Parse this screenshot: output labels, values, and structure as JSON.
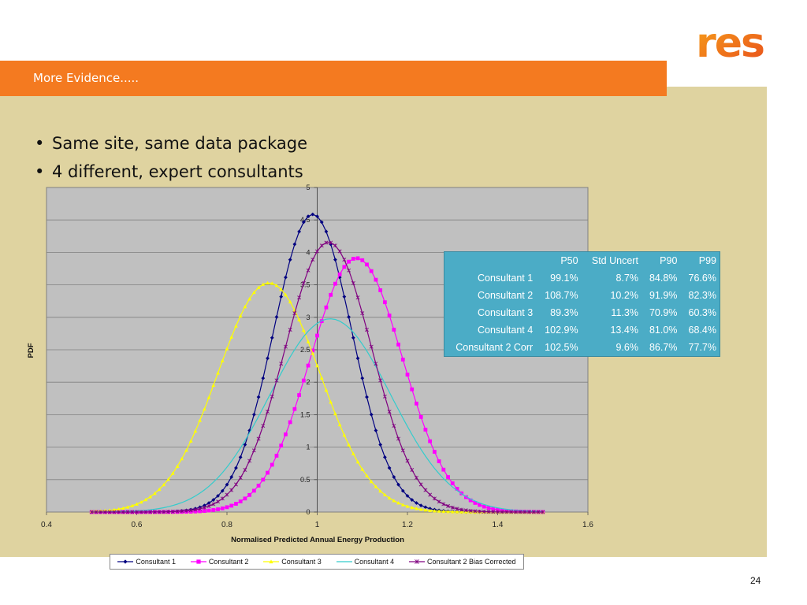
{
  "slide": {
    "title": "More Evidence.....",
    "logo_text": "res",
    "bullets": [
      "Same site, same data package",
      "4 different, expert consultants"
    ],
    "bullet_symbol": "•",
    "page_number": "24",
    "colors": {
      "title_bar": "#f47a20",
      "background": "#dfd3a0",
      "plot_area": "#c0c0c0",
      "table": "#4bacc6"
    }
  },
  "table": {
    "headers": [
      "",
      "P50",
      "Std Uncert",
      "P90",
      "P99"
    ],
    "rows": [
      [
        "Consultant 1",
        "99.1%",
        "8.7%",
        "84.8%",
        "76.6%"
      ],
      [
        "Consultant 2",
        "108.7%",
        "10.2%",
        "91.9%",
        "82.3%"
      ],
      [
        "Consultant 3",
        "89.3%",
        "11.3%",
        "70.9%",
        "60.3%"
      ],
      [
        "Consultant 4",
        "102.9%",
        "13.4%",
        "81.0%",
        "68.4%"
      ],
      [
        "Consultant 2 Corr",
        "102.5%",
        "9.6%",
        "86.7%",
        "77.7%"
      ]
    ]
  },
  "chart_data": {
    "type": "line",
    "xlabel": "Normalised Predicted Annual Energy Production",
    "ylabel": "PDF",
    "xlim": [
      0.4,
      1.6
    ],
    "ylim": [
      0,
      5
    ],
    "x_ticks": [
      "0.4",
      "0.6",
      "0.8",
      "1",
      "1.2",
      "1.4",
      "1.6"
    ],
    "y_ticks": [
      "0",
      "0.5",
      "1",
      "1.5",
      "2",
      "2.5",
      "3",
      "3.5",
      "4",
      "4.5",
      "5"
    ],
    "grid": "horizontal",
    "legend_position": "bottom",
    "x_range": [
      0.5,
      1.5
    ],
    "series": [
      {
        "name": "Consultant 1",
        "mean": 0.99,
        "std": 0.087,
        "color": "#000080",
        "marker": "diamond"
      },
      {
        "name": "Consultant 2",
        "mean": 1.087,
        "std": 0.102,
        "color": "#ff00ff",
        "marker": "square"
      },
      {
        "name": "Consultant 3",
        "mean": 0.893,
        "std": 0.113,
        "color": "#ffff00",
        "marker": "triangle"
      },
      {
        "name": "Consultant 4",
        "mean": 1.029,
        "std": 0.134,
        "color": "#33cccc",
        "marker": "none"
      },
      {
        "name": "Consultant 2 Bias Corrected",
        "mean": 1.025,
        "std": 0.096,
        "color": "#800080",
        "marker": "star"
      }
    ]
  }
}
